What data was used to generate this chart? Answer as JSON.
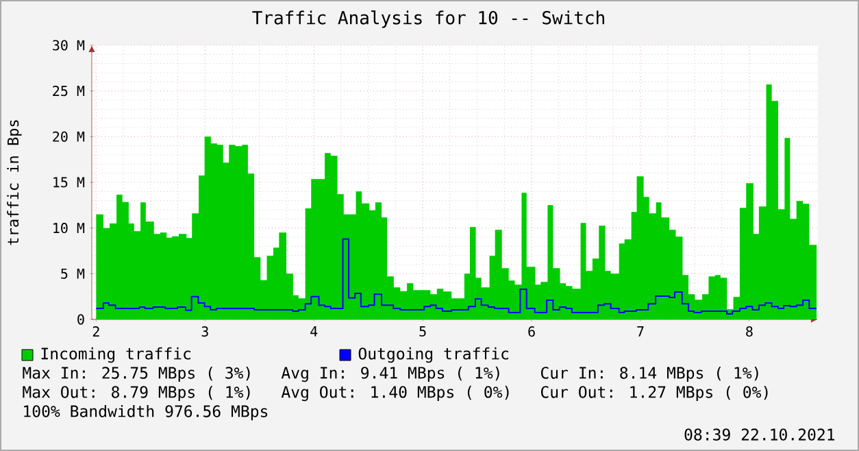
{
  "chart_data": {
    "type": "area",
    "title": "Traffic Analysis for 10 -- Switch",
    "ylabel": "traffic in Bps",
    "xlim": [
      1.96,
      8.63
    ],
    "ylim": [
      0,
      30
    ],
    "xticks": [
      2,
      3,
      4,
      5,
      6,
      7,
      8
    ],
    "yticks": [
      0,
      {
        "value": 5,
        "label": "5 M"
      },
      {
        "value": 10,
        "label": "10 M"
      },
      {
        "value": 15,
        "label": "15 M"
      },
      {
        "value": 20,
        "label": "20 M"
      },
      {
        "value": 25,
        "label": "25 M"
      },
      {
        "value": 30,
        "label": "30 M"
      }
    ],
    "grid": true,
    "legend": "bottom",
    "series": [
      {
        "name": "Incoming traffic",
        "color": "#00cc00",
        "x": [
          2.0,
          2.066,
          2.124,
          2.187,
          2.241,
          2.299,
          2.349,
          2.407,
          2.456,
          2.531,
          2.589,
          2.647,
          2.697,
          2.759,
          2.83,
          2.88,
          2.942,
          2.996,
          3.054,
          3.112,
          3.166,
          3.22,
          3.278,
          3.34,
          3.394,
          3.452,
          3.51,
          3.568,
          3.627,
          3.68,
          3.747,
          3.809,
          3.859,
          3.921,
          3.975,
          4.1,
          4.154,
          4.216,
          4.274,
          4.386,
          4.44,
          4.51,
          4.564,
          4.622,
          4.672,
          4.734,
          4.793,
          4.855,
          4.913,
          5.071,
          5.13,
          5.189,
          5.265,
          5.382,
          5.433,
          5.487,
          5.538,
          5.613,
          5.664,
          5.727,
          5.79,
          5.845,
          5.908,
          5.954,
          6.034,
          6.084,
          6.147,
          6.197,
          6.261,
          6.315,
          6.374,
          6.45,
          6.5,
          6.559,
          6.618,
          6.676,
          6.727,
          6.803,
          6.853,
          6.916,
          6.966,
          7.029,
          7.08,
          7.143,
          7.193,
          7.265,
          7.324,
          7.387,
          7.441,
          7.5,
          7.567,
          7.626,
          7.685,
          7.735,
          7.794,
          7.853,
          7.912,
          7.971,
          8.038,
          8.088,
          8.155,
          8.206,
          8.265,
          8.324,
          8.374,
          8.433,
          8.492,
          8.55,
          8.618
        ],
        "values": [
          11.5,
          10.0,
          10.5,
          13.65,
          12.85,
          10.5,
          9.65,
          12.8,
          10.7,
          9.35,
          9.5,
          8.95,
          9.1,
          9.35,
          8.9,
          11.6,
          15.75,
          20,
          19.25,
          19.1,
          17.15,
          19.1,
          18.95,
          19.1,
          15.95,
          6.8,
          4.3,
          6.95,
          7.85,
          9.5,
          5.0,
          2.65,
          2.3,
          12.15,
          15.35,
          18.2,
          17.9,
          13.7,
          11.5,
          14,
          12.7,
          11.95,
          12.8,
          11.15,
          4.7,
          3.5,
          3.1,
          3.95,
          3.2,
          2.75,
          3.35,
          3.05,
          2.3,
          5.0,
          10.1,
          4.55,
          3.5,
          6.95,
          9.8,
          5.6,
          4.25,
          3.8,
          13.85,
          5.75,
          3.8,
          4.1,
          12.5,
          5.6,
          3.95,
          3.65,
          3.35,
          10.55,
          5.3,
          6.65,
          10.25,
          5.3,
          5.0,
          8.3,
          8.75,
          11.75,
          15.65,
          13.4,
          11.6,
          12.8,
          11.15,
          9.8,
          9.05,
          4.85,
          2.75,
          2.15,
          2.75,
          4.7,
          4.85,
          4.55,
          1.1,
          2.45,
          12.2,
          14.9,
          9.35,
          12.35,
          25.7,
          23.9,
          12.05,
          19.85,
          11.0,
          12.95,
          12.65,
          8.15,
          8.15
        ]
      },
      {
        "name": "Outgoing traffic",
        "type": "step",
        "color": "#0000ff",
        "x": [
          2.0,
          2.066,
          2.116,
          2.178,
          2.398,
          2.448,
          2.523,
          2.635,
          2.747,
          2.822,
          2.876,
          2.938,
          2.996,
          3.05,
          3.104,
          3.452,
          3.805,
          3.859,
          3.921,
          3.975,
          4.046,
          4.1,
          4.154,
          4.266,
          4.32,
          4.378,
          4.432,
          4.502,
          4.556,
          4.622,
          4.73,
          4.793,
          5.013,
          5.071,
          5.122,
          5.181,
          5.265,
          5.42,
          5.483,
          5.538,
          5.601,
          5.66,
          5.79,
          5.895,
          5.954,
          6.029,
          6.139,
          6.197,
          6.256,
          6.315,
          6.37,
          6.609,
          6.668,
          6.727,
          6.803,
          6.853,
          6.962,
          7.071,
          7.139,
          7.265,
          7.315,
          7.382,
          7.441,
          7.492,
          7.559,
          7.794,
          7.845,
          7.912,
          7.971,
          8.029,
          8.088,
          8.147,
          8.206,
          8.265,
          8.315,
          8.374,
          8.433,
          8.492,
          8.55,
          8.618
        ],
        "values": [
          1.2,
          1.8,
          1.55,
          1.2,
          1.35,
          1.2,
          1.35,
          1.2,
          1.35,
          1.0,
          2.5,
          1.8,
          1.4,
          1.05,
          1.2,
          1.05,
          0.9,
          1.05,
          1.7,
          2.5,
          1.55,
          1.4,
          1.2,
          8.8,
          2.35,
          2.85,
          1.4,
          1.55,
          2.75,
          1.55,
          1.2,
          1.05,
          1.4,
          1.55,
          1.2,
          0.9,
          1.05,
          1.4,
          2.25,
          1.55,
          1.35,
          1.2,
          0.75,
          3.3,
          1.2,
          0.75,
          2.1,
          1.05,
          1.35,
          1.2,
          0.75,
          1.55,
          1.7,
          1.2,
          0.75,
          0.9,
          1.05,
          1.7,
          2.55,
          2.4,
          3.0,
          1.7,
          0.9,
          0.75,
          0.9,
          0.6,
          0.9,
          1.2,
          1.4,
          1.05,
          1.55,
          1.8,
          1.4,
          1.2,
          1.5,
          1.4,
          1.55,
          2.1,
          1.2,
          1.2
        ]
      }
    ],
    "annotations": [
      "Max In: 25.75 MBps ( 3%)",
      "Avg In: 9.41 MBps ( 1%)",
      "Cur In: 8.14 MBps ( 1%)",
      "Max Out: 8.79 MBps ( 1%)",
      "Avg Out: 1.40 MBps ( 0%)",
      "Cur Out: 1.27 MBps ( 0%)",
      "100% Bandwidth 976.56 MBps",
      "08:39 22.10.2021"
    ]
  }
}
